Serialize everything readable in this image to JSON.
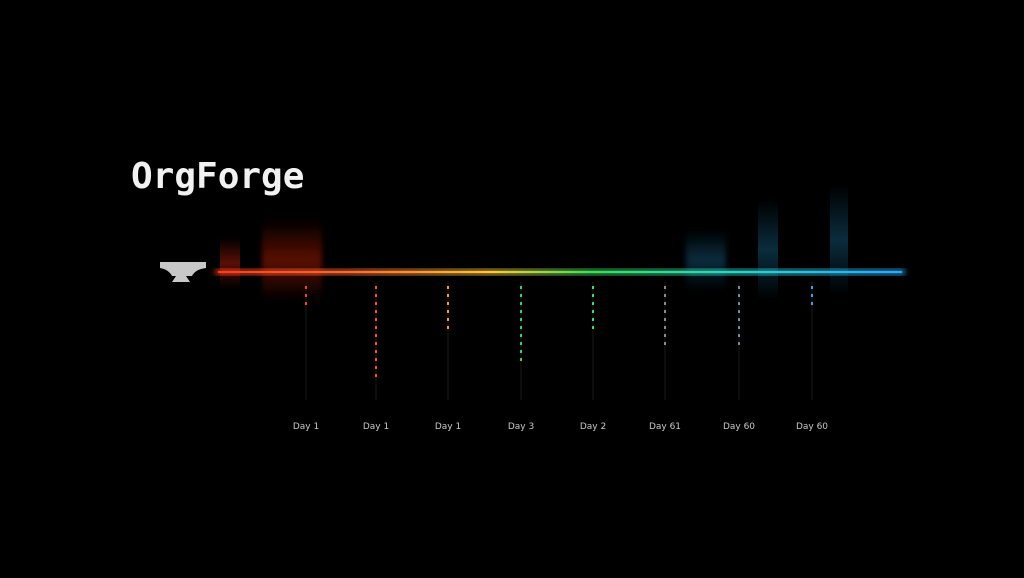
{
  "title": "OrgForge",
  "timeline": {
    "labels": [
      "Day 1",
      "Day 1",
      "Day 1",
      "Day 3",
      "Day 2",
      "Day 61",
      "Day 60",
      "Day 60"
    ]
  }
}
